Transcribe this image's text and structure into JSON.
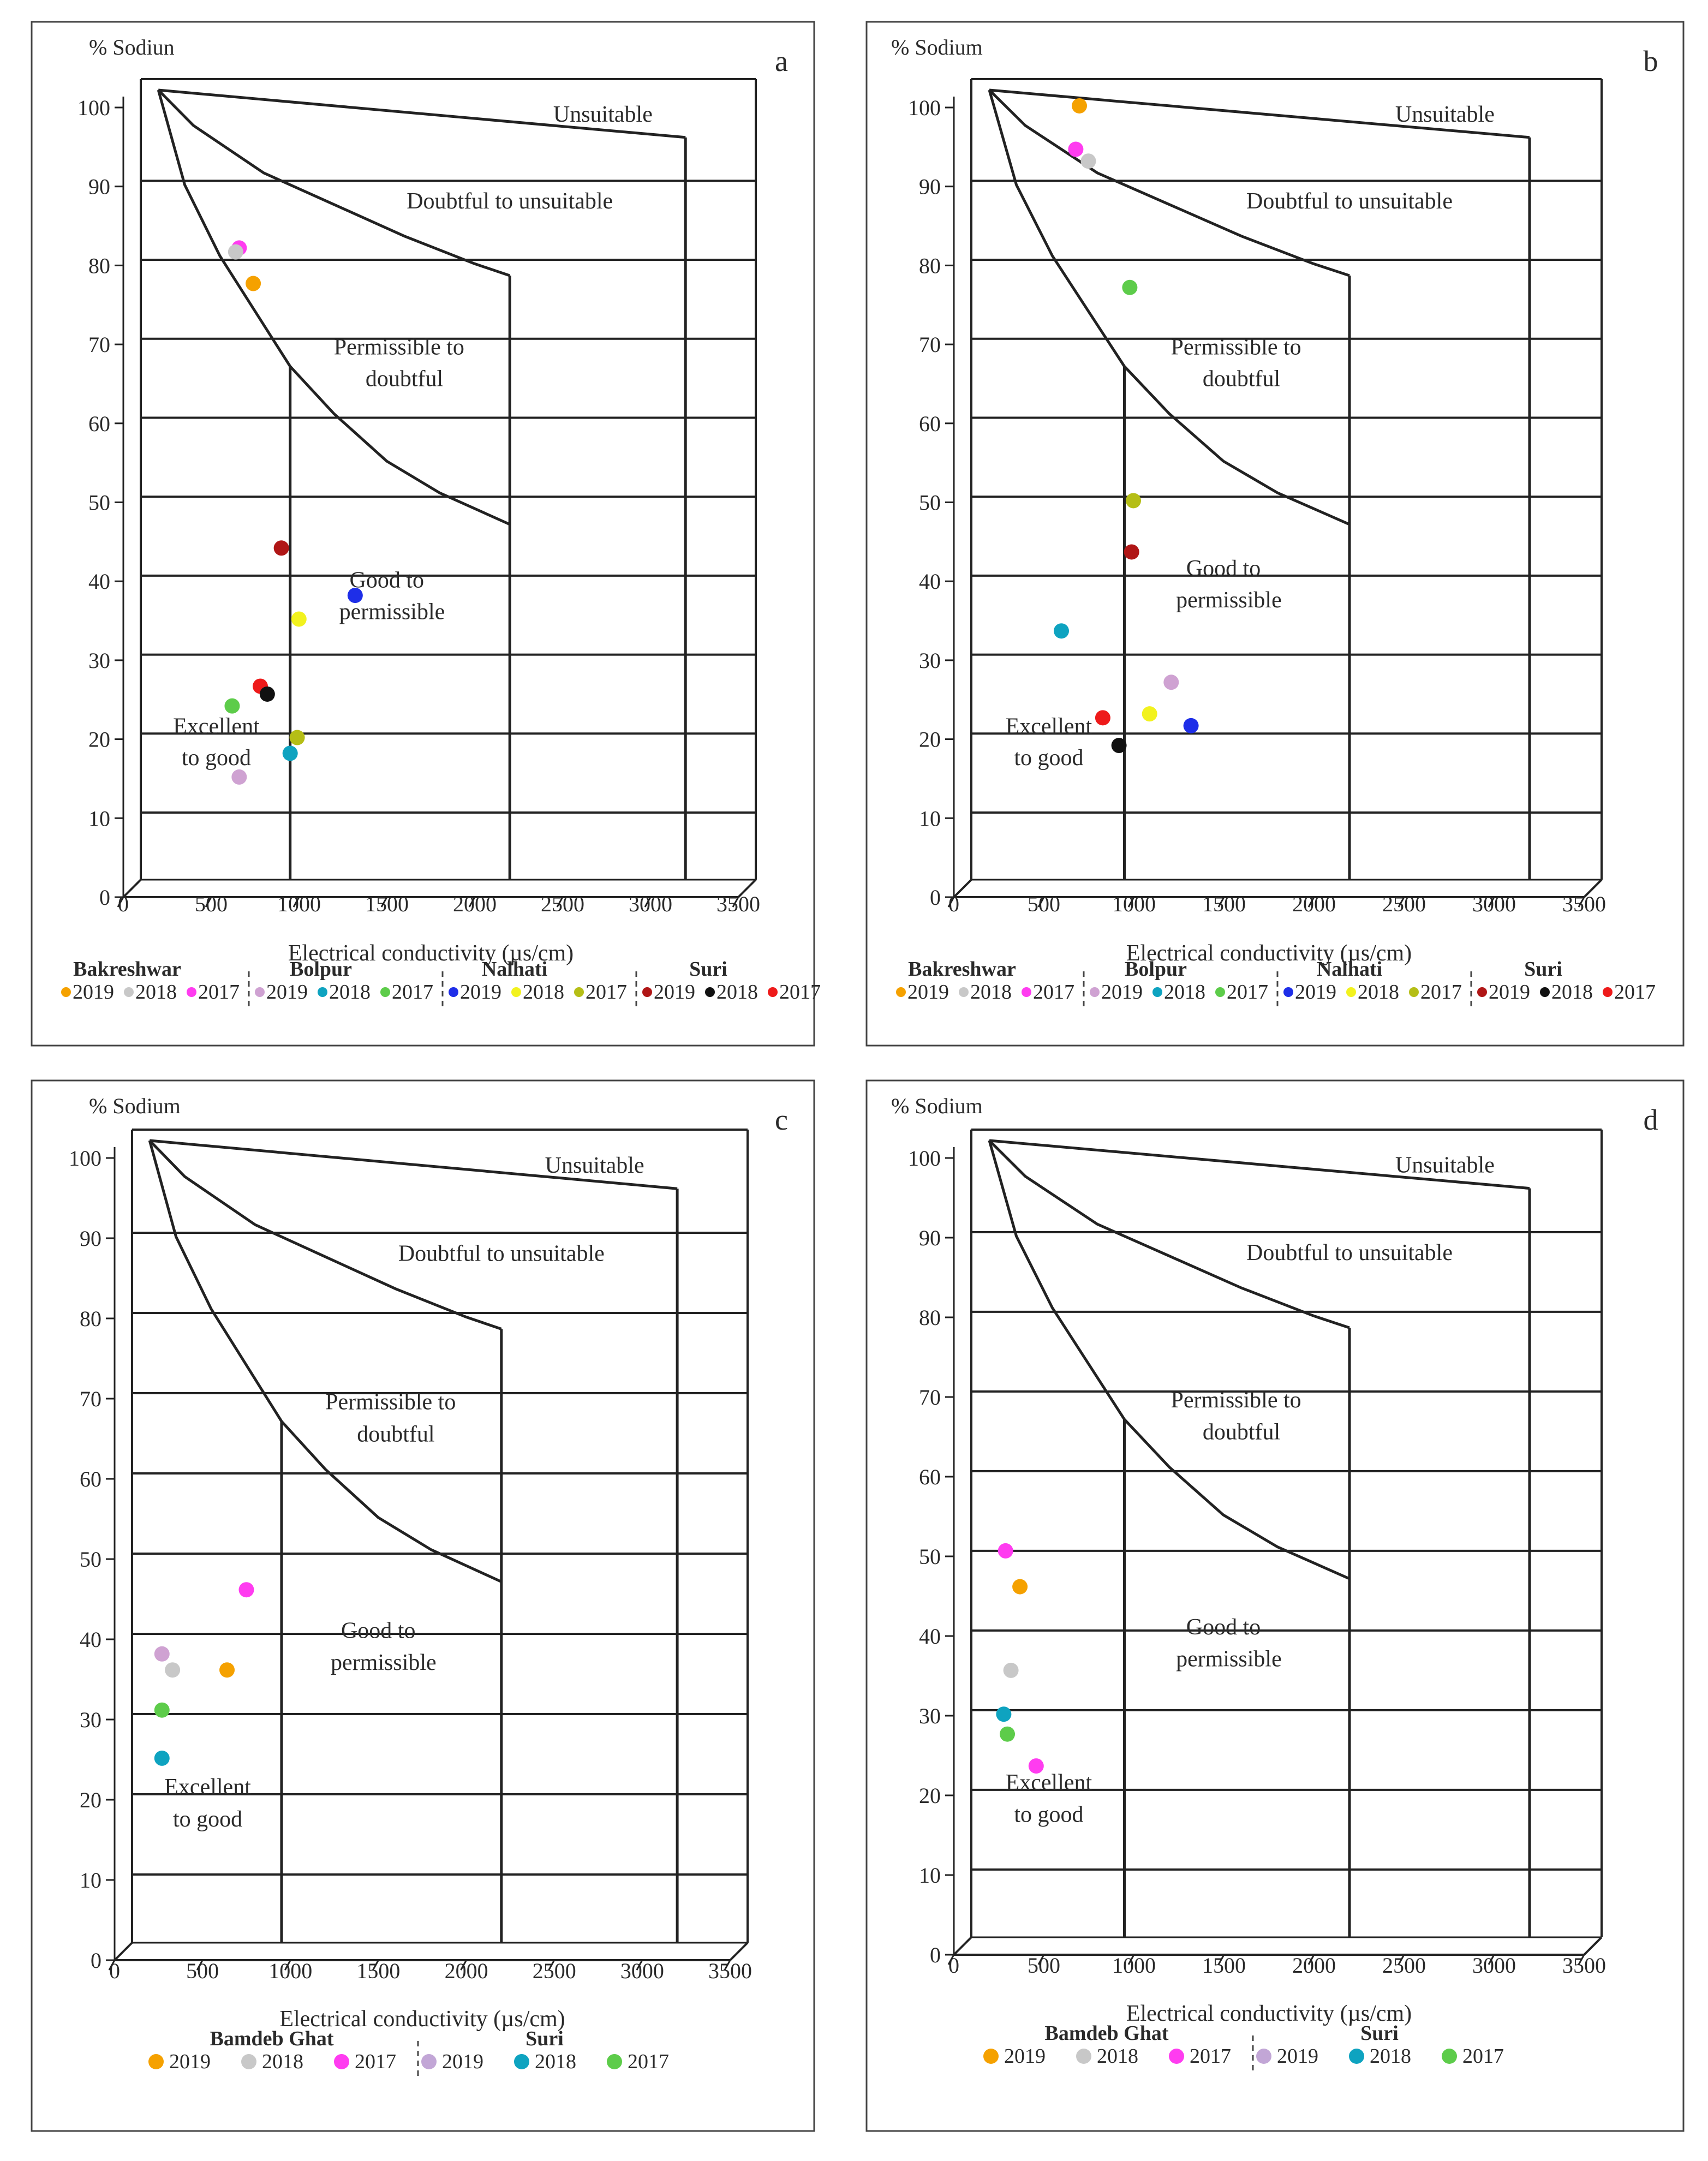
{
  "chart_data": [
    {
      "type": "scatter",
      "panel": "a",
      "ylabel": "% Sodiun",
      "xlabel": "Electrical conductivity (µs/cm)",
      "xlim": [
        0,
        3500
      ],
      "ylim": [
        0,
        100
      ],
      "xticks": [
        "0",
        "500",
        "1000",
        "1500",
        "2000",
        "2500",
        "3000",
        "3500"
      ],
      "yticks": [
        "0",
        "10",
        "20",
        "30",
        "40",
        "50",
        "60",
        "70",
        "80",
        "90",
        "100"
      ],
      "zones": [
        "Unsuitable",
        "Doubtful to unsuitable",
        "Permissible to doubtful",
        "Good to permissible",
        "Excellent to good"
      ],
      "legend_groups": [
        {
          "name": "Bakreshwar",
          "entries": [
            {
              "label": "2019",
              "color": "#f5a100"
            },
            {
              "label": "2018",
              "color": "#c8c8c8"
            },
            {
              "label": "2017",
              "color": "#ff3cf0"
            }
          ]
        },
        {
          "name": "Bolpur",
          "entries": [
            {
              "label": "2019",
              "color": "#cfa2d2"
            },
            {
              "label": "2018",
              "color": "#0ea3c0"
            },
            {
              "label": "2017",
              "color": "#5dcc4a"
            }
          ]
        },
        {
          "name": "Nalhati",
          "entries": [
            {
              "label": "2019",
              "color": "#1e2ee8"
            },
            {
              "label": "2018",
              "color": "#f2f21e"
            },
            {
              "label": "2017",
              "color": "#b5be16"
            }
          ]
        },
        {
          "name": "Suri",
          "entries": [
            {
              "label": "2019",
              "color": "#b01616"
            },
            {
              "label": "2018",
              "color": "#111111"
            },
            {
              "label": "2017",
              "color": "#ee1a1a"
            }
          ]
        }
      ],
      "points": [
        {
          "x": 560,
          "y": 80,
          "color": "#ff3cf0"
        },
        {
          "x": 540,
          "y": 79.5,
          "color": "#c8c8c8"
        },
        {
          "x": 640,
          "y": 75.5,
          "color": "#f5a100"
        },
        {
          "x": 800,
          "y": 42,
          "color": "#b01616"
        },
        {
          "x": 1220,
          "y": 36,
          "color": "#1e2ee8"
        },
        {
          "x": 900,
          "y": 33,
          "color": "#f2f21e"
        },
        {
          "x": 680,
          "y": 24.5,
          "color": "#ee1a1a"
        },
        {
          "x": 720,
          "y": 23.5,
          "color": "#111111"
        },
        {
          "x": 520,
          "y": 22,
          "color": "#5dcc4a"
        },
        {
          "x": 890,
          "y": 18,
          "color": "#b5be16"
        },
        {
          "x": 850,
          "y": 16,
          "color": "#0ea3c0"
        },
        {
          "x": 560,
          "y": 13,
          "color": "#cfa2d2"
        }
      ]
    },
    {
      "type": "scatter",
      "panel": "b",
      "ylabel": "% Sodium",
      "xlabel": "Electrical conductivity (µs/cm)",
      "xlim": [
        0,
        3500
      ],
      "ylim": [
        0,
        100
      ],
      "xticks": [
        "0",
        "500",
        "1000",
        "1500",
        "2000",
        "2500",
        "3000",
        "3500"
      ],
      "yticks": [
        "0",
        "10",
        "20",
        "30",
        "40",
        "50",
        "60",
        "70",
        "80",
        "90",
        "100"
      ],
      "zones": [
        "Unsuitable",
        "Doubtful to unsuitable",
        "Permissible to doubtful",
        "Good to permissible",
        "Excellent to good"
      ],
      "legend_groups": [
        {
          "name": "Bakreshwar",
          "entries": [
            {
              "label": "2019",
              "color": "#f5a100"
            },
            {
              "label": "2018",
              "color": "#c8c8c8"
            },
            {
              "label": "2017",
              "color": "#ff3cf0"
            }
          ]
        },
        {
          "name": "Bolpur",
          "entries": [
            {
              "label": "2019",
              "color": "#cfa2d2"
            },
            {
              "label": "2018",
              "color": "#0ea3c0"
            },
            {
              "label": "2017",
              "color": "#5dcc4a"
            }
          ]
        },
        {
          "name": "Nalhati",
          "entries": [
            {
              "label": "2019",
              "color": "#1e2ee8"
            },
            {
              "label": "2018",
              "color": "#f2f21e"
            },
            {
              "label": "2017",
              "color": "#b5be16"
            }
          ]
        },
        {
          "name": "Suri",
          "entries": [
            {
              "label": "2019",
              "color": "#b01616"
            },
            {
              "label": "2018",
              "color": "#111111"
            },
            {
              "label": "2017",
              "color": "#ee1a1a"
            }
          ]
        }
      ],
      "points": [
        {
          "x": 600,
          "y": 98,
          "color": "#f5a100"
        },
        {
          "x": 580,
          "y": 92.5,
          "color": "#ff3cf0"
        },
        {
          "x": 650,
          "y": 91,
          "color": "#c8c8c8"
        },
        {
          "x": 880,
          "y": 75,
          "color": "#5dcc4a"
        },
        {
          "x": 900,
          "y": 48,
          "color": "#b5be16"
        },
        {
          "x": 890,
          "y": 41.5,
          "color": "#b01616"
        },
        {
          "x": 500,
          "y": 31.5,
          "color": "#0ea3c0"
        },
        {
          "x": 1110,
          "y": 25,
          "color": "#cfa2d2"
        },
        {
          "x": 990,
          "y": 21,
          "color": "#f2f21e"
        },
        {
          "x": 730,
          "y": 20.5,
          "color": "#ee1a1a"
        },
        {
          "x": 1220,
          "y": 19.5,
          "color": "#1e2ee8"
        },
        {
          "x": 820,
          "y": 17,
          "color": "#111111"
        }
      ]
    },
    {
      "type": "scatter",
      "panel": "c",
      "ylabel": "% Sodium",
      "xlabel": "Electrical conductivity (µs/cm)",
      "xlim": [
        0,
        3500
      ],
      "ylim": [
        0,
        100
      ],
      "xticks": [
        "0",
        "500",
        "1000",
        "1500",
        "2000",
        "2500",
        "3000",
        "3500"
      ],
      "yticks": [
        "0",
        "10",
        "20",
        "30",
        "40",
        "50",
        "60",
        "70",
        "80",
        "90",
        "100"
      ],
      "zones": [
        "Unsuitable",
        "Doubtful to unsuitable",
        "Permissible to doubtful",
        "Good to permissible",
        "Excellent to good"
      ],
      "legend_groups": [
        {
          "name": "Bamdeb Ghat",
          "entries": [
            {
              "label": "2019",
              "color": "#f5a100"
            },
            {
              "label": "2018",
              "color": "#c8c8c8"
            },
            {
              "label": "2017",
              "color": "#ff3cf0"
            }
          ]
        },
        {
          "name": "Suri",
          "entries": [
            {
              "label": "2019",
              "color": "#c2a6d6"
            },
            {
              "label": "2018",
              "color": "#0ea3c0"
            },
            {
              "label": "2017",
              "color": "#5dcc4a"
            }
          ]
        }
      ],
      "points": [
        {
          "x": 650,
          "y": 44,
          "color": "#ff3cf0"
        },
        {
          "x": 170,
          "y": 36,
          "color": "#cfa2d2"
        },
        {
          "x": 230,
          "y": 34,
          "color": "#c8c8c8"
        },
        {
          "x": 540,
          "y": 34,
          "color": "#f5a100"
        },
        {
          "x": 170,
          "y": 29,
          "color": "#5dcc4a"
        },
        {
          "x": 170,
          "y": 23,
          "color": "#0ea3c0"
        }
      ]
    },
    {
      "type": "scatter",
      "panel": "d",
      "ylabel": "% Sodium",
      "xlabel": "Electrical conductivity (µs/cm)",
      "xlim": [
        0,
        3500
      ],
      "ylim": [
        0,
        100
      ],
      "xticks": [
        "0",
        "500",
        "1000",
        "1500",
        "2000",
        "2500",
        "3000",
        "3500"
      ],
      "yticks": [
        "0",
        "10",
        "20",
        "30",
        "40",
        "50",
        "60",
        "70",
        "80",
        "90",
        "100"
      ],
      "zones": [
        "Unsuitable",
        "Doubtful to unsuitable",
        "Permissible to doubtful",
        "Good to permissible",
        "Excellent to good"
      ],
      "legend_groups": [
        {
          "name": "Bamdeb Ghat",
          "entries": [
            {
              "label": "2019",
              "color": "#f5a100"
            },
            {
              "label": "2018",
              "color": "#c8c8c8"
            },
            {
              "label": "2017",
              "color": "#ff3cf0"
            }
          ]
        },
        {
          "name": "Suri",
          "entries": [
            {
              "label": "2019",
              "color": "#c2a6d6"
            },
            {
              "label": "2018",
              "color": "#0ea3c0"
            },
            {
              "label": "2017",
              "color": "#5dcc4a"
            }
          ]
        }
      ],
      "points": [
        {
          "x": 190,
          "y": 48.5,
          "color": "#ff3cf0"
        },
        {
          "x": 270,
          "y": 44,
          "color": "#f5a100"
        },
        {
          "x": 220,
          "y": 33.5,
          "color": "#c8c8c8"
        },
        {
          "x": 180,
          "y": 28,
          "color": "#0ea3c0"
        },
        {
          "x": 200,
          "y": 25.5,
          "color": "#5dcc4a"
        },
        {
          "x": 360,
          "y": 21.5,
          "color": "#ff3cf0"
        }
      ]
    }
  ]
}
